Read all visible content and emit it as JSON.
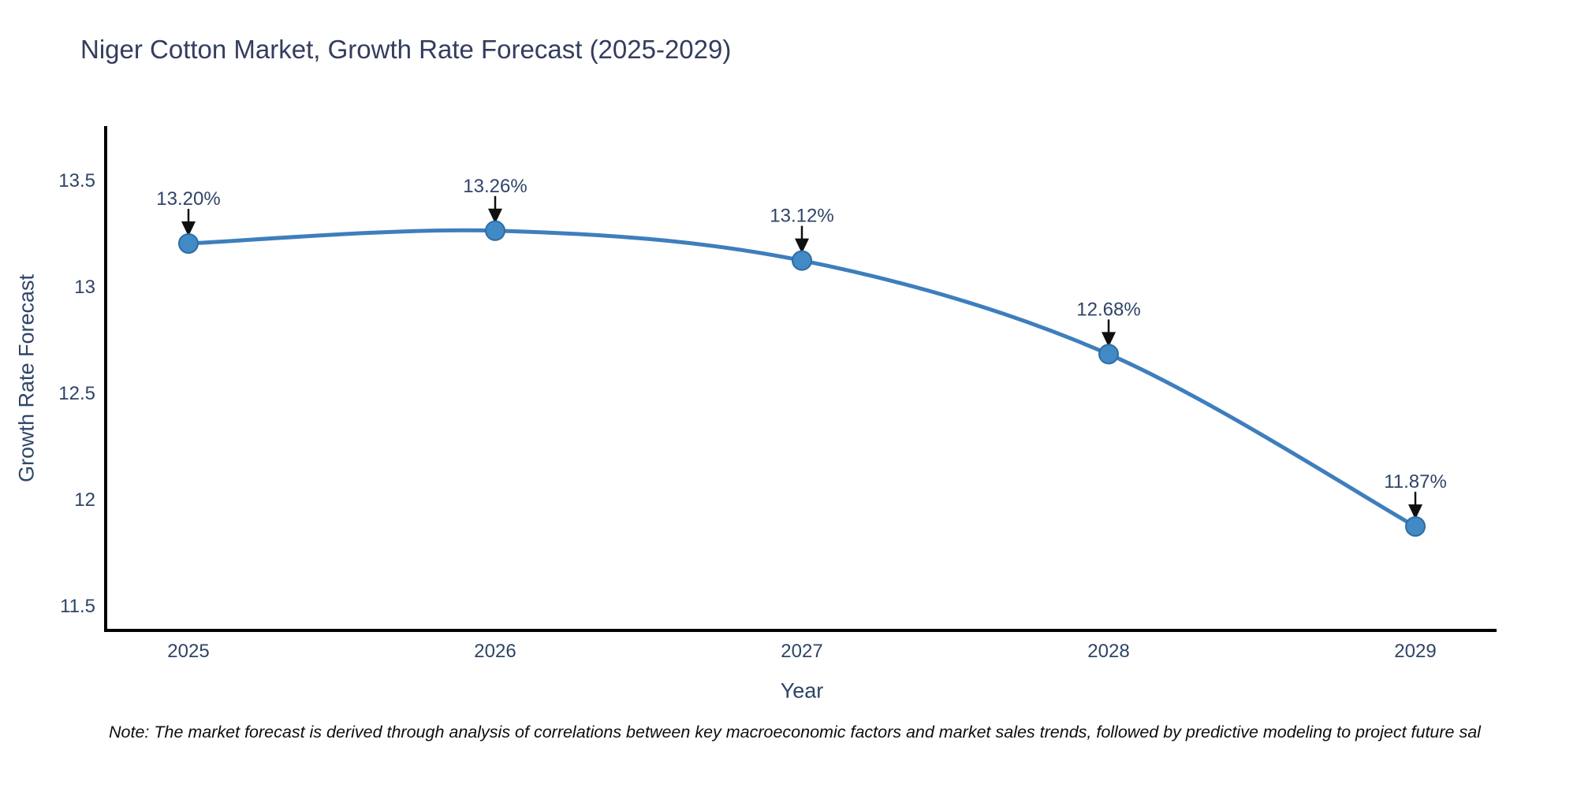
{
  "title": {
    "text": "Niger Cotton Market, Growth Rate Forecast (2025-2029)"
  },
  "note": {
    "text": "Note: The market forecast is derived through analysis of correlations between key macroeconomic factors and market sales trends, followed by predictive modeling to project future sal"
  },
  "chart_data": {
    "type": "line",
    "title": "Niger Cotton Market, Growth Rate Forecast (2025-2029)",
    "xlabel": "Year",
    "ylabel": "Growth Rate Forecast",
    "x": [
      2025,
      2026,
      2027,
      2028,
      2029
    ],
    "series": [
      {
        "name": "Growth Rate Forecast",
        "values": [
          13.2,
          13.26,
          13.12,
          12.68,
          11.87
        ]
      }
    ],
    "point_labels": [
      "13.20%",
      "13.26%",
      "13.12%",
      "12.68%",
      "11.87%"
    ],
    "yticks": [
      11.5,
      12,
      12.5,
      13,
      13.5
    ],
    "ylim": [
      11.38,
      13.74
    ],
    "grid": false,
    "legend": "none",
    "line_shape": "spline",
    "markers": true,
    "annotation_style": "value labels above points with black down arrows",
    "colors": {
      "line": "#3e7ebd",
      "marker": "#428ac6",
      "marker_edge": "#2e6da4",
      "axis": "#000000",
      "text": "#2f4467",
      "arrow": "#101010",
      "title": "#343d5e"
    }
  }
}
